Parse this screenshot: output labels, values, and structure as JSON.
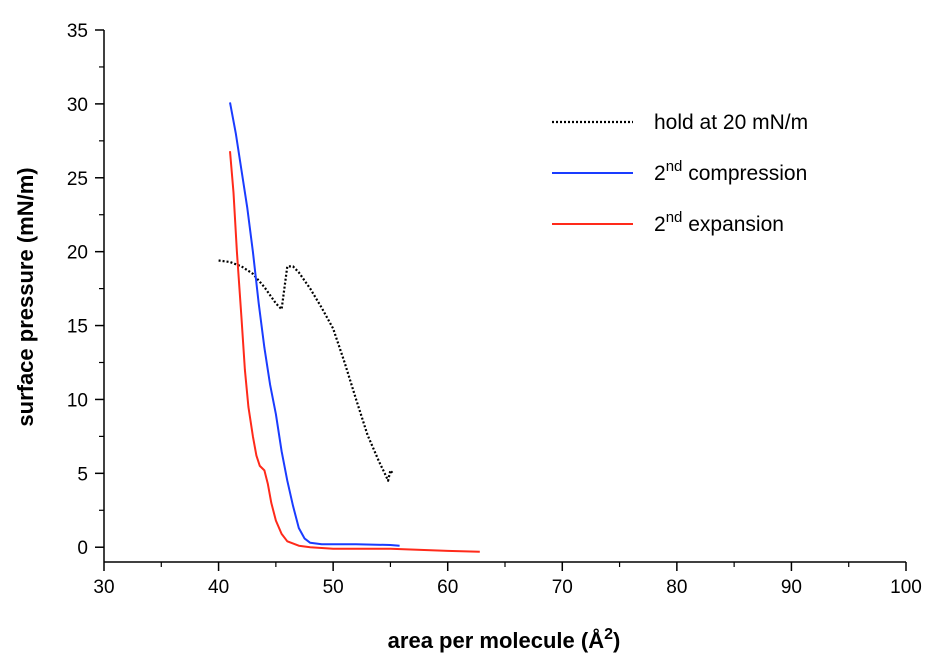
{
  "chart_data": {
    "type": "line",
    "title": "",
    "xlabel": "area per molecule (Å",
    "xlabel_sup": "2",
    "xlabel_close": ")",
    "ylabel": "surface pressure (mN/m)",
    "xlim": [
      30,
      100
    ],
    "ylim": [
      -1,
      35
    ],
    "xticks": [
      30,
      40,
      50,
      60,
      70,
      80,
      90,
      100
    ],
    "yticks": [
      0,
      5,
      10,
      15,
      20,
      25,
      30,
      35
    ],
    "grid": false,
    "legend_position": "top-right",
    "series": [
      {
        "name": "hold at 20 mN/m",
        "color": "#000000",
        "style": "dotted",
        "x": [
          40,
          41,
          42,
          43,
          44,
          45,
          45.5,
          46,
          46.5,
          47,
          48,
          49,
          50,
          51,
          52,
          53,
          54,
          54.5,
          54.8,
          55,
          55.2
        ],
        "y": [
          19.4,
          19.3,
          19.0,
          18.5,
          17.6,
          16.5,
          16.1,
          19.0,
          19.0,
          18.6,
          17.5,
          16.2,
          14.8,
          12.5,
          10.0,
          7.6,
          5.8,
          5.0,
          4.5,
          5.2,
          5.0
        ]
      },
      {
        "name": "2nd compression",
        "color": "#1a3cff",
        "style": "solid",
        "x": [
          41.0,
          41.5,
          42,
          42.5,
          43,
          43.5,
          44,
          44.5,
          45,
          45.5,
          46,
          46.5,
          47,
          47.5,
          48,
          49,
          50,
          52,
          55,
          55.8
        ],
        "y": [
          30.1,
          28.0,
          25.5,
          23.0,
          20.0,
          16.5,
          13.5,
          11.0,
          9.0,
          6.5,
          4.5,
          2.8,
          1.3,
          0.6,
          0.3,
          0.2,
          0.2,
          0.2,
          0.15,
          0.1
        ],
        "label_sup": "nd",
        "label_pre": "2",
        "label_post": " compression"
      },
      {
        "name": "2nd expansion",
        "color": "#ff2a1a",
        "style": "solid",
        "x": [
          41.0,
          41.3,
          41.6,
          42,
          42.3,
          42.6,
          43,
          43.3,
          43.6,
          44,
          44.3,
          44.6,
          45,
          45.5,
          46,
          47,
          48,
          50,
          55,
          60,
          62.8
        ],
        "y": [
          26.8,
          24.0,
          20.0,
          15.5,
          12.0,
          9.5,
          7.5,
          6.2,
          5.5,
          5.2,
          4.3,
          3.0,
          1.8,
          0.9,
          0.4,
          0.1,
          0.0,
          -0.1,
          -0.1,
          -0.25,
          -0.3
        ],
        "label_sup": "nd",
        "label_pre": "2",
        "label_post": " expansion"
      }
    ]
  }
}
